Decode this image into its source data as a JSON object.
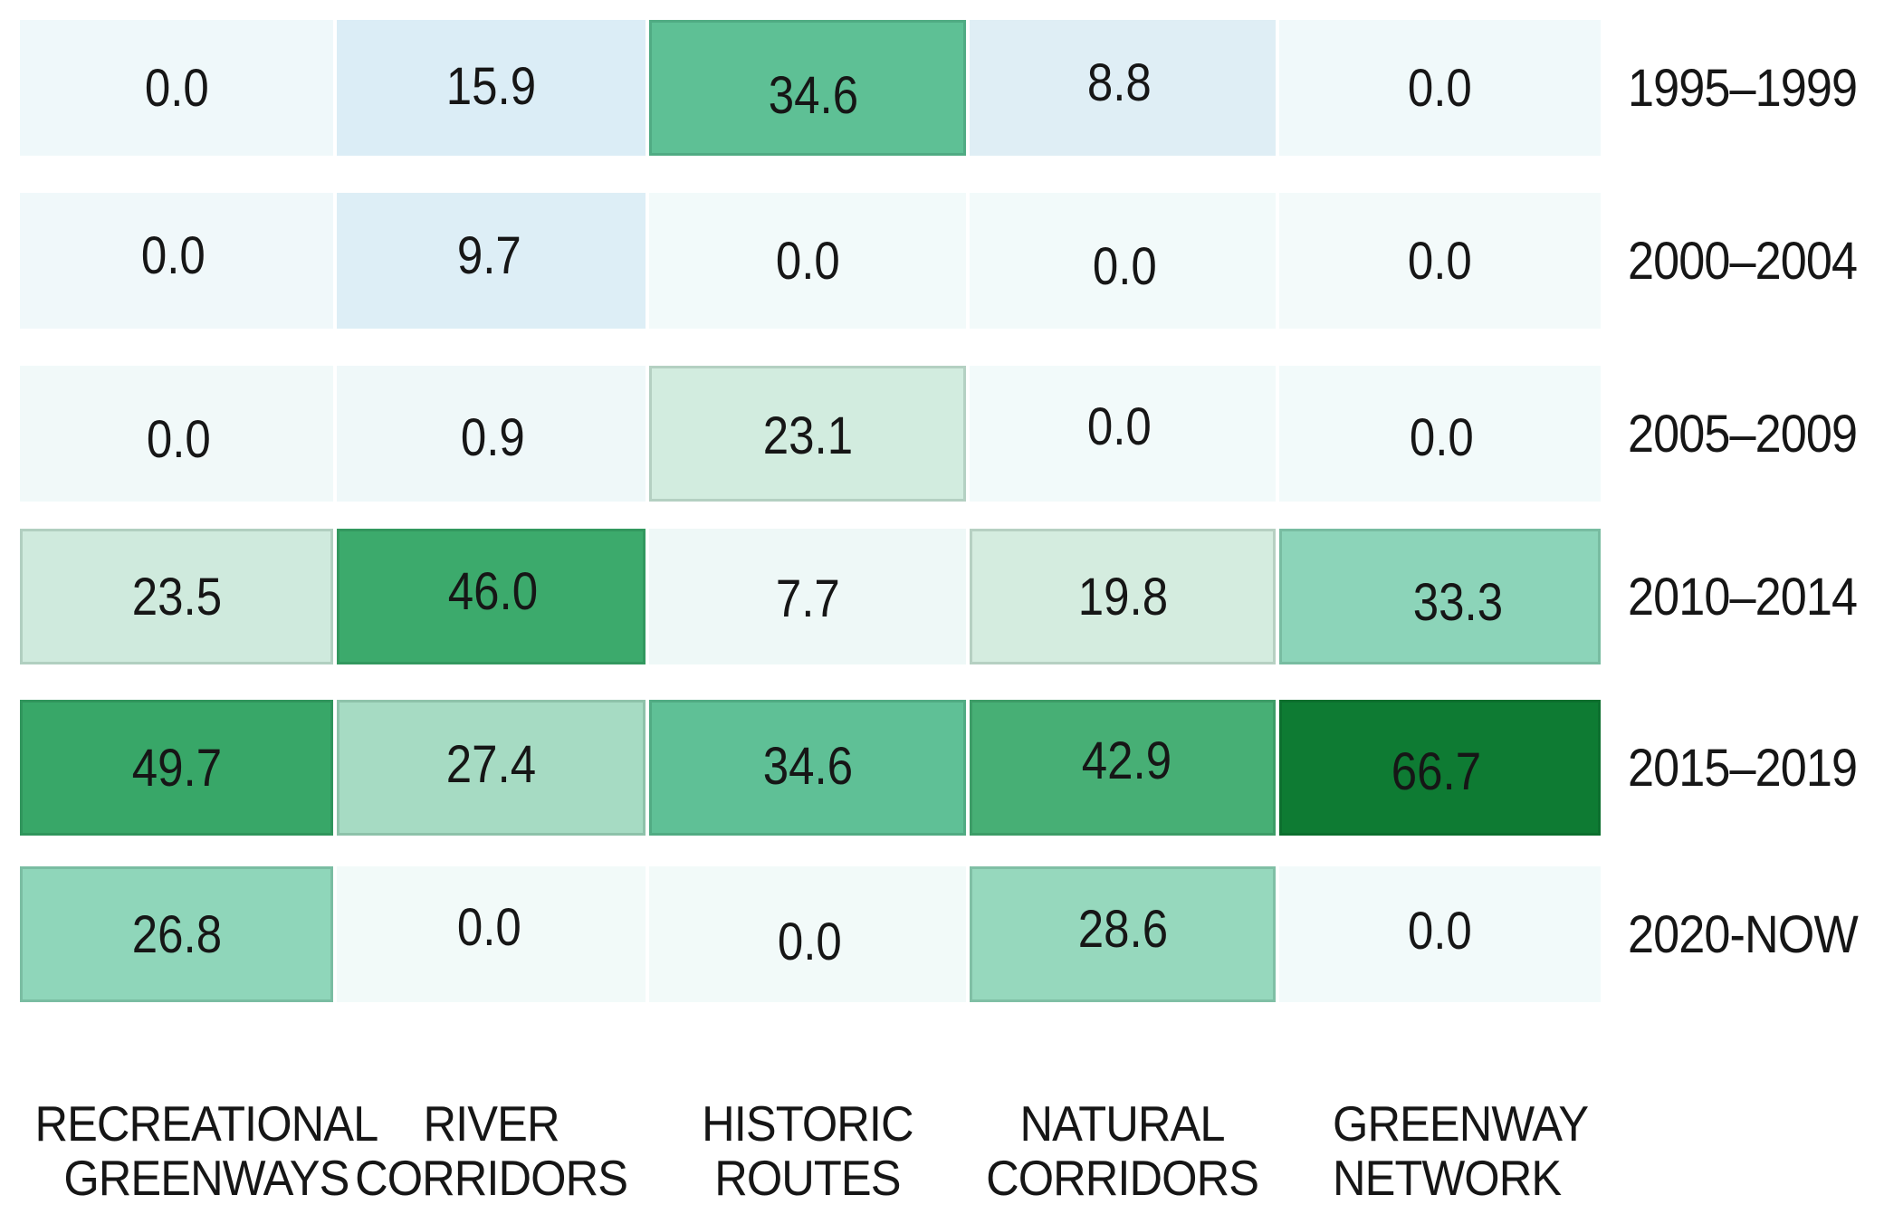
{
  "chart_data": {
    "type": "heatmap",
    "title": "",
    "rows": [
      "1995–1999",
      "2000–2004",
      "2005–2009",
      "2010–2014",
      "2015–2019",
      "2020-NOW"
    ],
    "columns": [
      {
        "label": "RECREATIONAL GREENWAYS",
        "lines": [
          "RECREATIONAL",
          "GREENWAYS"
        ]
      },
      {
        "label": "RIVER CORRIDORS",
        "lines": [
          "RIVER",
          "CORRIDORS"
        ]
      },
      {
        "label": "HISTORIC ROUTES",
        "lines": [
          "HISTORIC",
          "ROUTES"
        ]
      },
      {
        "label": "NATURAL CORRIDORS",
        "lines": [
          "NATURAL",
          "CORRIDORS"
        ]
      },
      {
        "label": "GREENWAY NETWORK",
        "lines": [
          "GREENWAY",
          "NETWORK"
        ]
      }
    ],
    "values": [
      [
        0.0,
        15.9,
        34.6,
        8.8,
        0.0
      ],
      [
        0.0,
        9.7,
        0.0,
        0.0,
        0.0
      ],
      [
        0.0,
        0.9,
        23.1,
        0.0,
        0.0
      ],
      [
        23.5,
        46.0,
        7.7,
        19.8,
        33.3
      ],
      [
        49.7,
        27.4,
        34.6,
        42.9,
        66.7
      ],
      [
        26.8,
        0.0,
        0.0,
        28.6,
        0.0
      ]
    ],
    "value_decimals": 1,
    "cell_colors": [
      [
        "#eff8fa",
        "#dbedf6",
        "#5ec095",
        "#dfeef5",
        "#f0f9fa"
      ],
      [
        "#f0f8fa",
        "#ddeef6",
        "#f2fafa",
        "#f2fafa",
        "#f3fafa"
      ],
      [
        "#f1f9f9",
        "#eff8f9",
        "#d2ecdf",
        "#f2fafa",
        "#f2fafa"
      ],
      [
        "#cfeadd",
        "#3caa6c",
        "#eef8f7",
        "#d4ecdf",
        "#8cd4b9"
      ],
      [
        "#38a768",
        "#a6dbc3",
        "#5fc096",
        "#47af75",
        "#0e7b33"
      ],
      [
        "#8fd6ba",
        "#f2faf9",
        "#f2faf9",
        "#96d8bd",
        "#f2fafa"
      ]
    ],
    "cell_value_offsets": [
      [
        [
          0,
          0
        ],
        [
          0,
          -2
        ],
        [
          6,
          8
        ],
        [
          -4,
          -6
        ],
        [
          0,
          0
        ]
      ],
      [
        [
          -4,
          -6
        ],
        [
          -2,
          -6
        ],
        [
          0,
          0
        ],
        [
          2,
          6
        ],
        [
          0,
          0
        ]
      ],
      [
        [
          2,
          6
        ],
        [
          2,
          4
        ],
        [
          0,
          2
        ],
        [
          -4,
          -8
        ],
        [
          2,
          4
        ]
      ],
      [
        [
          0,
          0
        ],
        [
          2,
          -6
        ],
        [
          0,
          2
        ],
        [
          0,
          0
        ],
        [
          20,
          6
        ]
      ],
      [
        [
          0,
          0
        ],
        [
          0,
          -4
        ],
        [
          0,
          -2
        ],
        [
          4,
          -8
        ],
        [
          -4,
          4
        ]
      ],
      [
        [
          0,
          0
        ],
        [
          -2,
          -8
        ],
        [
          2,
          8
        ],
        [
          0,
          -6
        ],
        [
          0,
          -4
        ]
      ]
    ],
    "scale": {
      "low_color": "#f2fafa",
      "low_mid_color": "#dbedf6",
      "mid_color": "#8fd6ba",
      "high_color": "#0e7b33",
      "description": "pale blue-white (low values) through light blue and mint to dark green (high values), BuGn-like",
      "min": 0.0,
      "max": 66.7
    },
    "text_color": "#161616",
    "background": "#ffffff",
    "grid": "none",
    "legend": "none",
    "row_axis_position": "right",
    "column_axis_position": "bottom"
  }
}
